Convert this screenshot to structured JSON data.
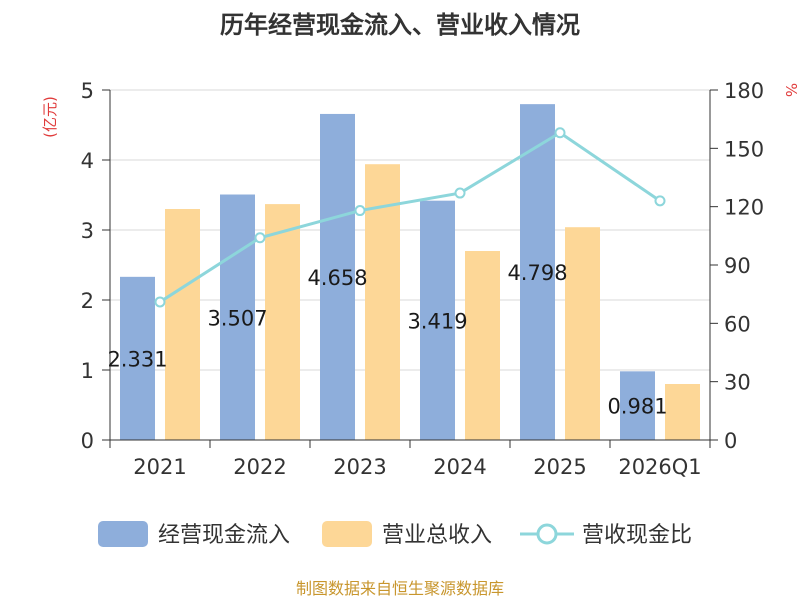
{
  "colors": {
    "cash_inflow": "#8eaedb",
    "revenue": "#fdd797",
    "ratio": "#8dd6db",
    "axis_unit": "#e03b3b",
    "source": "#c8962d",
    "grid": "#d9d9d9"
  },
  "chart_data": {
    "type": "bar",
    "title": "历年经营现金流入、营业收入情况",
    "categories": [
      "2021",
      "2022",
      "2023",
      "2024",
      "2025",
      "2026Q1"
    ],
    "y_left": {
      "unit": "(亿元)",
      "ylim": [
        0,
        5
      ],
      "ticks": [
        "0",
        "1",
        "2",
        "3",
        "4",
        "5"
      ]
    },
    "y_right": {
      "unit": "%",
      "ylim": [
        0,
        180
      ],
      "ticks": [
        "0",
        "30",
        "60",
        "90",
        "120",
        "150",
        "180"
      ]
    },
    "series": [
      {
        "name": "经营现金流入",
        "type": "bar",
        "axis": "left",
        "values": [
          2.331,
          3.507,
          4.658,
          3.419,
          4.798,
          0.981
        ],
        "labels": [
          "2.331",
          "3.507",
          "4.658",
          "3.419",
          "4.798",
          "0.981"
        ]
      },
      {
        "name": "营业总收入",
        "type": "bar",
        "axis": "left",
        "values": [
          3.3,
          3.37,
          3.94,
          2.7,
          3.04,
          0.8
        ]
      },
      {
        "name": "营收现金比",
        "type": "line",
        "axis": "right",
        "values": [
          71,
          104,
          118,
          127,
          158,
          123
        ]
      }
    ],
    "grid": true,
    "legend": "bottom"
  },
  "source": "制图数据来自恒生聚源数据库"
}
